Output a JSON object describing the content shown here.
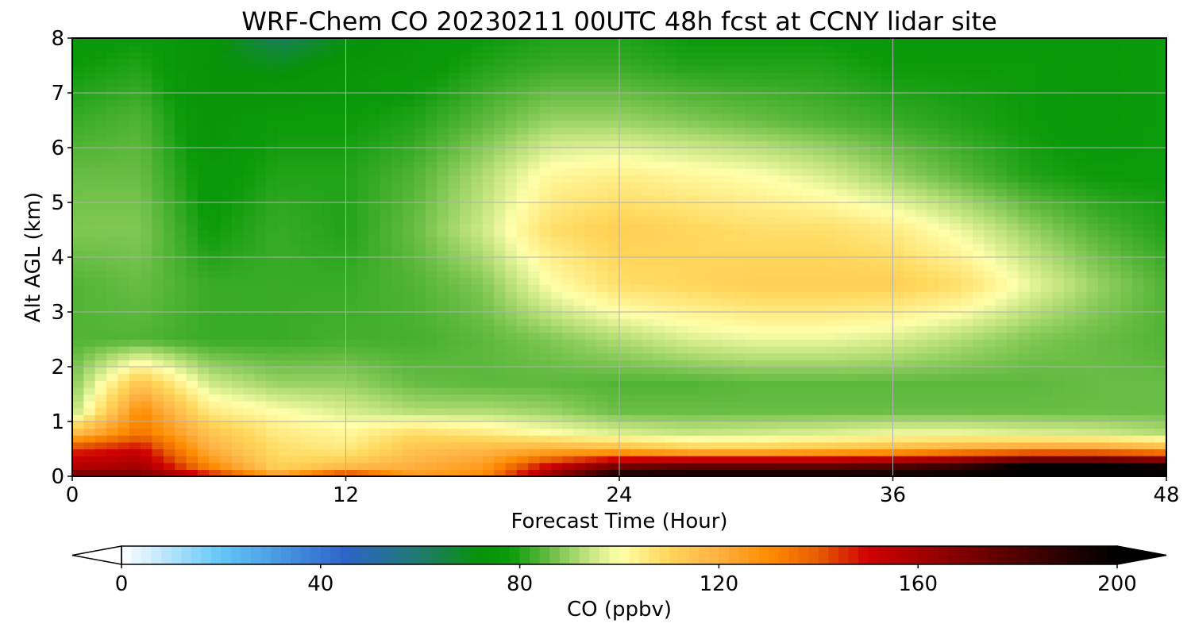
{
  "chart_data": {
    "type": "heatmap",
    "title": "WRF-Chem CO  20230211 00UTC 48h fcst at CCNY lidar site",
    "xlabel": "Forecast Time (Hour)",
    "ylabel": "Alt AGL (km)",
    "xlim": [
      0,
      48
    ],
    "ylim": [
      0,
      8
    ],
    "xticks": [
      "0",
      "12",
      "24",
      "36",
      "48"
    ],
    "yticks": [
      "0",
      "1",
      "2",
      "3",
      "4",
      "5",
      "6",
      "7",
      "8"
    ],
    "grid": true,
    "colorbar": {
      "label": "CO  (ppbv)",
      "range": [
        0,
        200
      ],
      "ticks": [
        "0",
        "40",
        "80",
        "120",
        "160",
        "200"
      ],
      "extend": "both",
      "colormap_stops": [
        {
          "v": 0,
          "c": "#ffffff"
        },
        {
          "v": 20,
          "c": "#62c6f8"
        },
        {
          "v": 45,
          "c": "#2d64c8"
        },
        {
          "v": 60,
          "c": "#1e7a6e"
        },
        {
          "v": 72,
          "c": "#079307"
        },
        {
          "v": 78,
          "c": "#0a9a0a"
        },
        {
          "v": 85,
          "c": "#5cb83c"
        },
        {
          "v": 92,
          "c": "#b0dc72"
        },
        {
          "v": 100,
          "c": "#ffffaa"
        },
        {
          "v": 110,
          "c": "#ffd65a"
        },
        {
          "v": 120,
          "c": "#ffb040"
        },
        {
          "v": 130,
          "c": "#ff8c00"
        },
        {
          "v": 140,
          "c": "#e65c00"
        },
        {
          "v": 150,
          "c": "#d00000"
        },
        {
          "v": 165,
          "c": "#900000"
        },
        {
          "v": 180,
          "c": "#500000"
        },
        {
          "v": 195,
          "c": "#100000"
        },
        {
          "v": 200,
          "c": "#000000"
        }
      ]
    },
    "hours": [
      0,
      3,
      6,
      9,
      12,
      15,
      18,
      21,
      24,
      27,
      30,
      33,
      36,
      39,
      42,
      45,
      48
    ],
    "altitudes_km": [
      0,
      0.2,
      0.5,
      0.8,
      1.2,
      1.7,
      2.5,
      3.5,
      4.5,
      5.5,
      6.5,
      7.5,
      8
    ],
    "values_ppbv": [
      [
        175,
        172,
        150,
        125,
        150,
        125,
        130,
        165,
        200,
        200,
        200,
        200,
        200,
        200,
        200,
        200,
        200
      ],
      [
        155,
        160,
        130,
        110,
        115,
        120,
        125,
        150,
        170,
        175,
        175,
        175,
        178,
        185,
        200,
        200,
        195
      ],
      [
        145,
        150,
        120,
        108,
        105,
        115,
        118,
        120,
        118,
        112,
        112,
        115,
        118,
        122,
        125,
        125,
        120
      ],
      [
        115,
        135,
        115,
        105,
        102,
        108,
        105,
        100,
        96,
        94,
        95,
        96,
        98,
        98,
        96,
        95,
        92
      ],
      [
        92,
        130,
        105,
        100,
        96,
        92,
        92,
        90,
        86,
        86,
        86,
        86,
        86,
        86,
        86,
        86,
        86
      ],
      [
        88,
        115,
        95,
        90,
        90,
        86,
        85,
        85,
        84,
        84,
        85,
        85,
        85,
        85,
        85,
        86,
        86
      ],
      [
        84,
        84,
        82,
        82,
        83,
        83,
        85,
        88,
        92,
        96,
        98,
        98,
        96,
        92,
        88,
        86,
        84
      ],
      [
        84,
        86,
        82,
        82,
        82,
        84,
        88,
        100,
        108,
        110,
        112,
        112,
        112,
        108,
        98,
        90,
        84
      ],
      [
        88,
        88,
        78,
        82,
        80,
        86,
        95,
        108,
        112,
        110,
        108,
        108,
        105,
        98,
        90,
        84,
        80
      ],
      [
        86,
        86,
        76,
        80,
        80,
        84,
        92,
        102,
        104,
        102,
        100,
        96,
        90,
        85,
        80,
        78,
        78
      ],
      [
        82,
        84,
        74,
        78,
        78,
        80,
        85,
        90,
        90,
        88,
        86,
        84,
        82,
        80,
        78,
        76,
        78
      ],
      [
        78,
        80,
        72,
        70,
        74,
        76,
        80,
        82,
        82,
        80,
        80,
        80,
        78,
        78,
        78,
        76,
        78
      ],
      [
        76,
        78,
        74,
        62,
        70,
        75,
        78,
        80,
        80,
        78,
        78,
        78,
        76,
        76,
        76,
        76,
        78
      ]
    ]
  }
}
